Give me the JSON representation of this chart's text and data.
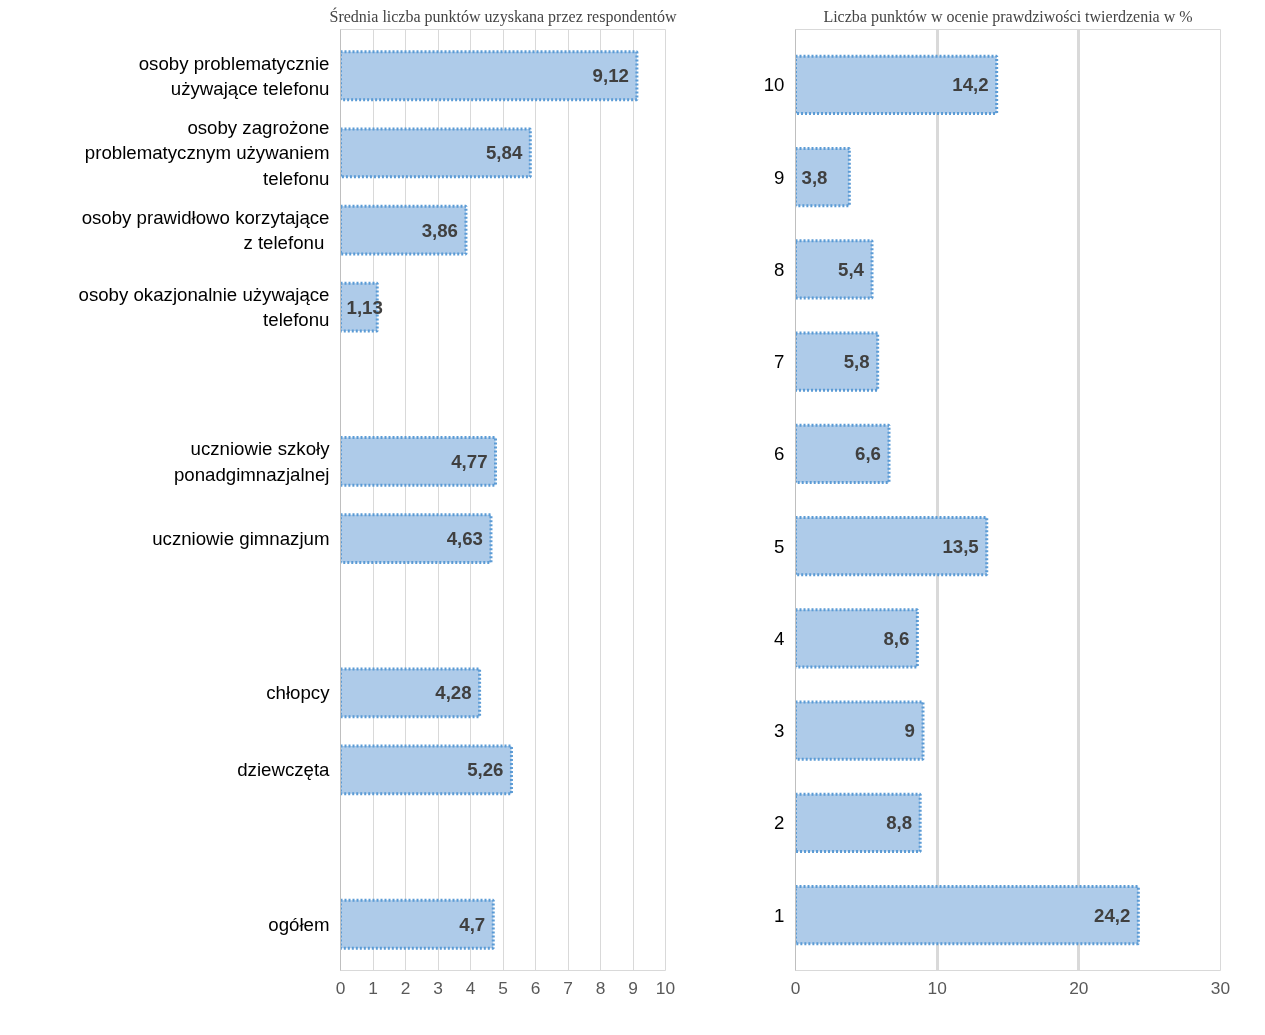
{
  "chart_data": [
    {
      "type": "bar",
      "orientation": "horizontal",
      "title": "Średnia liczba punktów uzyskana przez respondentów",
      "categories": [
        "osoby problematycznie używające telefonu",
        "osoby zagrożone problematycznym używaniem telefonu",
        "osoby prawidłowo korzytające z  telefonu",
        "osoby okazjonalnie używające telefonu",
        null,
        "uczniowie szkoły ponadgimnazjalnej",
        "uczniowie gimnazjum",
        null,
        "chłopcy",
        "dziewczęta",
        null,
        "ogółem"
      ],
      "values": [
        9.12,
        5.84,
        3.86,
        1.13,
        null,
        4.77,
        4.63,
        null,
        4.28,
        5.26,
        null,
        4.7
      ],
      "value_labels": [
        "9,12",
        "5,84",
        "3,86",
        "1,13",
        null,
        "4,77",
        "4,63",
        null,
        "4,28",
        "5,26",
        null,
        "4,7"
      ],
      "color": "#aecbe9",
      "xlim": [
        0,
        10
      ],
      "xticks": [
        0,
        1,
        2,
        3,
        4,
        5,
        6,
        7,
        8,
        9,
        10
      ],
      "grid": "x"
    },
    {
      "type": "bar",
      "orientation": "horizontal",
      "title": "Liczba punktów w ocenie prawdziwości twierdzenia w %",
      "categories": [
        "10",
        "9",
        "8",
        "7",
        "6",
        "5",
        "4",
        "3",
        "2",
        "1"
      ],
      "values": [
        14.2,
        3.8,
        5.4,
        5.8,
        6.6,
        13.5,
        8.6,
        9,
        8.8,
        24.2
      ],
      "value_labels": [
        "14,2",
        "3,8",
        "5,4",
        "5,8",
        "6,6",
        "13,5",
        "8,6",
        "9",
        "8,8",
        "24,2"
      ],
      "color": "#aecbe9",
      "xlim": [
        0,
        30
      ],
      "xticks": [
        0,
        10,
        20,
        30
      ],
      "grid": "x"
    }
  ]
}
